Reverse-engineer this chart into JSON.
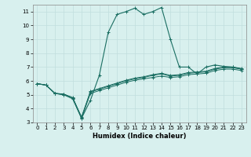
{
  "xlabel": "Humidex (Indice chaleur)",
  "xlim": [
    -0.5,
    23.5
  ],
  "ylim": [
    3,
    11.5
  ],
  "yticks": [
    3,
    4,
    5,
    6,
    7,
    8,
    9,
    10,
    11
  ],
  "xticks": [
    0,
    1,
    2,
    3,
    4,
    5,
    6,
    7,
    8,
    9,
    10,
    11,
    12,
    13,
    14,
    15,
    16,
    17,
    18,
    19,
    20,
    21,
    22,
    23
  ],
  "background_color": "#d8f0ee",
  "grid_color": "#c0dedd",
  "line_color": "#1a6e62",
  "line1_x": [
    0,
    1,
    2,
    3,
    4,
    5,
    6,
    7,
    8,
    9,
    10,
    11,
    12,
    13,
    14,
    15,
    16,
    17,
    18,
    19,
    20,
    21,
    22,
    23
  ],
  "line1_y": [
    5.8,
    5.7,
    5.1,
    5.0,
    4.8,
    3.3,
    4.6,
    6.4,
    9.5,
    10.8,
    11.0,
    11.25,
    10.8,
    11.0,
    11.3,
    9.0,
    7.0,
    7.0,
    6.5,
    7.0,
    7.15,
    7.05,
    7.0,
    6.85
  ],
  "line2_x": [
    0,
    1,
    2,
    3,
    4,
    5,
    6,
    7,
    8,
    9,
    10,
    11,
    12,
    13,
    14,
    15,
    16,
    17,
    18,
    19,
    20,
    21,
    22,
    23
  ],
  "line2_y": [
    5.8,
    5.7,
    5.1,
    5.0,
    4.7,
    3.3,
    5.1,
    5.3,
    5.5,
    5.7,
    5.9,
    6.05,
    6.15,
    6.25,
    6.35,
    6.25,
    6.3,
    6.45,
    6.5,
    6.55,
    6.75,
    6.85,
    6.85,
    6.75
  ],
  "line3_x": [
    0,
    1,
    2,
    3,
    4,
    5,
    6,
    7,
    8,
    9,
    10,
    11,
    12,
    13,
    14,
    15,
    16,
    17,
    18,
    19,
    20,
    21,
    22,
    23
  ],
  "line3_y": [
    5.8,
    5.7,
    5.1,
    5.05,
    4.78,
    3.4,
    5.2,
    5.4,
    5.6,
    5.8,
    6.0,
    6.15,
    6.25,
    6.4,
    6.5,
    6.35,
    6.4,
    6.55,
    6.6,
    6.65,
    6.85,
    6.95,
    6.95,
    6.85
  ],
  "line4_x": [
    0,
    1,
    2,
    3,
    4,
    5,
    6,
    7,
    8,
    9,
    10,
    11,
    12,
    13,
    14,
    15,
    16,
    17,
    18,
    19,
    20,
    21,
    22,
    23
  ],
  "line4_y": [
    5.8,
    5.7,
    5.1,
    5.05,
    4.78,
    3.35,
    5.25,
    5.45,
    5.65,
    5.85,
    6.05,
    6.2,
    6.3,
    6.45,
    6.55,
    6.4,
    6.45,
    6.6,
    6.65,
    6.7,
    6.9,
    7.0,
    7.0,
    6.9
  ]
}
